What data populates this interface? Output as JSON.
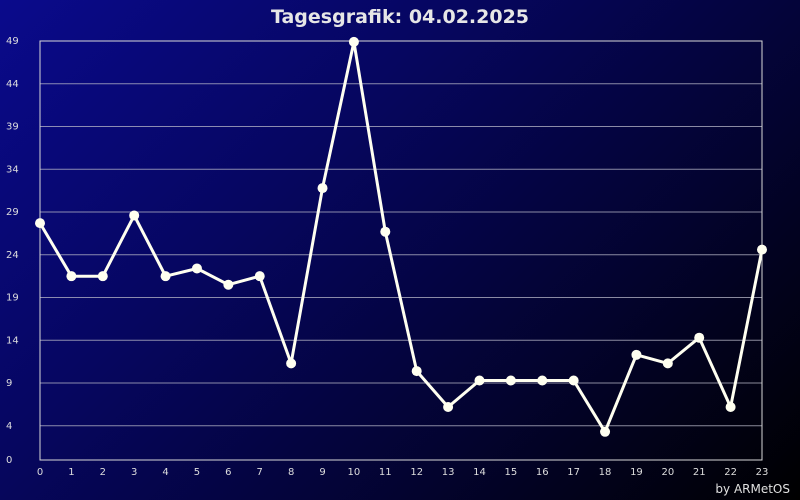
{
  "credit": "by ARMetOS",
  "colors": {
    "line": "#fffff0",
    "grid": "#b8b8c8",
    "frame": "#d8d8d8"
  },
  "chart_data": {
    "type": "line",
    "title": "Tagesgrafik: 04.02.2025",
    "xlabel": "",
    "ylabel": "",
    "x": [
      0,
      1,
      2,
      3,
      4,
      5,
      6,
      7,
      8,
      9,
      10,
      11,
      12,
      13,
      14,
      15,
      16,
      17,
      18,
      19,
      20,
      21,
      22,
      23
    ],
    "values": [
      27.7,
      21.5,
      21.5,
      28.6,
      21.5,
      22.4,
      20.5,
      21.5,
      11.3,
      31.8,
      48.9,
      26.7,
      10.4,
      6.2,
      9.3,
      9.3,
      9.3,
      9.3,
      3.3,
      12.3,
      11.3,
      14.3,
      6.2,
      24.6
    ],
    "xlim": [
      0,
      23
    ],
    "ylim": [
      0,
      49
    ],
    "yticks": [
      0,
      4,
      9,
      14,
      19,
      24,
      29,
      34,
      39,
      44,
      49
    ],
    "xticks": [
      0,
      1,
      2,
      3,
      4,
      5,
      6,
      7,
      8,
      9,
      10,
      11,
      12,
      13,
      14,
      15,
      16,
      17,
      18,
      19,
      20,
      21,
      22,
      23
    ],
    "grid": true,
    "legend": "none"
  }
}
